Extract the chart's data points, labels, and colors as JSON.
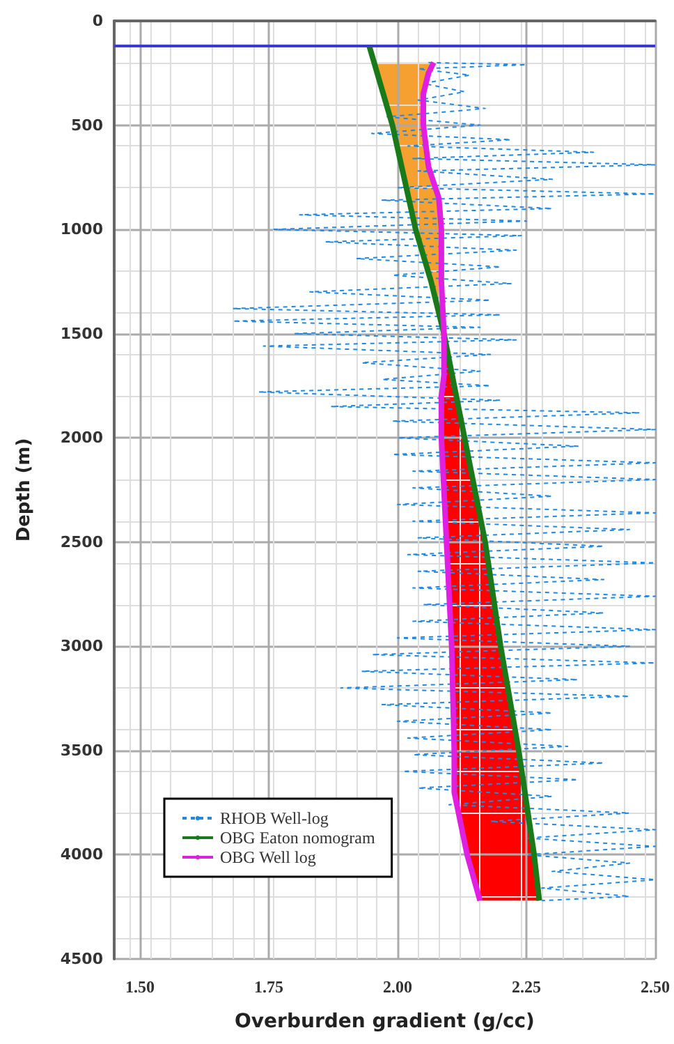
{
  "chart_data": {
    "type": "line",
    "xlabel": "Overburden gradient (g/cc)",
    "ylabel": "Depth (m)",
    "xlim": [
      1.45,
      2.5
    ],
    "xticks": [
      {
        "value": 1.5,
        "label": "1.50"
      },
      {
        "value": 1.75,
        "label": "1.75"
      },
      {
        "value": 2.0,
        "label": "2.00"
      },
      {
        "value": 2.25,
        "label": "2.25"
      },
      {
        "value": 2.5,
        "label": "2.50"
      }
    ],
    "ylim": [
      4500,
      0
    ],
    "yticks": [
      0,
      500,
      1000,
      1500,
      2000,
      2500,
      3000,
      3500,
      4000,
      4500
    ],
    "grid": true,
    "legend": "bottom left",
    "marker": "none",
    "ref_lines": [
      {
        "axis": "y",
        "value": 120,
        "color": "#3a3acc"
      }
    ],
    "series": [
      {
        "name": "RHOB Well-log",
        "color": "#1e88e5",
        "line_style": "dashed",
        "x": [
          2.06,
          2.25,
          2.04,
          2.14,
          2.05,
          2.13,
          2.04,
          2.17,
          1.98,
          2.16,
          1.95,
          2.22,
          2.02,
          2.38,
          2.03,
          2.5,
          2.04,
          2.3,
          2.0,
          2.5,
          1.97,
          2.3,
          1.81,
          2.25,
          1.76,
          2.24,
          1.86,
          2.23,
          1.92,
          2.2,
          1.99,
          2.22,
          1.83,
          2.18,
          1.68,
          2.2,
          1.68,
          2.16,
          1.8,
          2.23,
          1.74,
          2.18,
          1.93,
          2.16,
          1.97,
          2.18,
          1.73,
          2.2,
          1.87,
          2.47,
          1.99,
          2.5,
          2.0,
          2.35,
          1.99,
          2.5,
          2.03,
          2.5,
          2.03,
          2.3,
          2.0,
          2.5,
          2.03,
          2.45,
          2.04,
          2.4,
          2.02,
          2.5,
          2.04,
          2.4,
          2.03,
          2.5,
          2.05,
          2.4,
          2.03,
          2.5,
          2.0,
          2.45,
          1.95,
          2.5,
          1.93,
          2.35,
          1.89,
          2.45,
          1.97,
          2.3,
          2.0,
          2.3,
          2.02,
          2.33,
          2.03,
          2.4,
          2.01,
          2.35,
          2.04,
          2.3,
          2.1,
          2.45,
          2.18,
          2.5,
          2.25,
          2.5,
          2.25,
          2.45,
          2.3,
          2.5,
          2.28,
          2.45,
          2.28
        ],
        "values": [
          200,
          210,
          230,
          260,
          300,
          340,
          380,
          420,
          460,
          500,
          540,
          570,
          600,
          630,
          660,
          690,
          720,
          760,
          800,
          830,
          860,
          900,
          930,
          960,
          1000,
          1030,
          1060,
          1100,
          1140,
          1180,
          1220,
          1260,
          1300,
          1340,
          1380,
          1410,
          1440,
          1470,
          1500,
          1530,
          1560,
          1600,
          1640,
          1680,
          1720,
          1750,
          1780,
          1820,
          1850,
          1880,
          1920,
          1960,
          2000,
          2040,
          2080,
          2120,
          2160,
          2200,
          2240,
          2280,
          2320,
          2360,
          2400,
          2440,
          2480,
          2520,
          2560,
          2600,
          2640,
          2680,
          2720,
          2760,
          2800,
          2840,
          2880,
          2920,
          2960,
          3000,
          3040,
          3080,
          3120,
          3160,
          3200,
          3240,
          3280,
          3320,
          3360,
          3400,
          3440,
          3480,
          3520,
          3560,
          3600,
          3640,
          3680,
          3720,
          3760,
          3800,
          3840,
          3880,
          3920,
          3960,
          4000,
          4040,
          4080,
          4120,
          4160,
          4200,
          4220
        ]
      },
      {
        "name": "OBG Eaton nomogram",
        "color": "#1a7a1a",
        "line_style": "solid",
        "x": [
          1.945,
          1.99,
          2.035,
          2.065,
          2.09,
          2.13,
          2.17,
          2.2,
          2.235,
          2.265,
          2.275
        ],
        "values": [
          120,
          500,
          1000,
          1250,
          1500,
          2000,
          2500,
          3000,
          3500,
          4000,
          4220
        ]
      },
      {
        "name": "OBG Well log",
        "color": "#e020e0",
        "line_style": "solid",
        "x": [
          2.07,
          2.06,
          2.05,
          2.05,
          2.06,
          2.08,
          2.085,
          2.085,
          2.09,
          2.09,
          2.085,
          2.085,
          2.095,
          2.105,
          2.11,
          2.11,
          2.135,
          2.16
        ],
        "values": [
          200,
          250,
          350,
          500,
          700,
          850,
          1000,
          1250,
          1500,
          1700,
          1800,
          2000,
          2500,
          3000,
          3500,
          3700,
          4000,
          4220
        ]
      }
    ]
  }
}
